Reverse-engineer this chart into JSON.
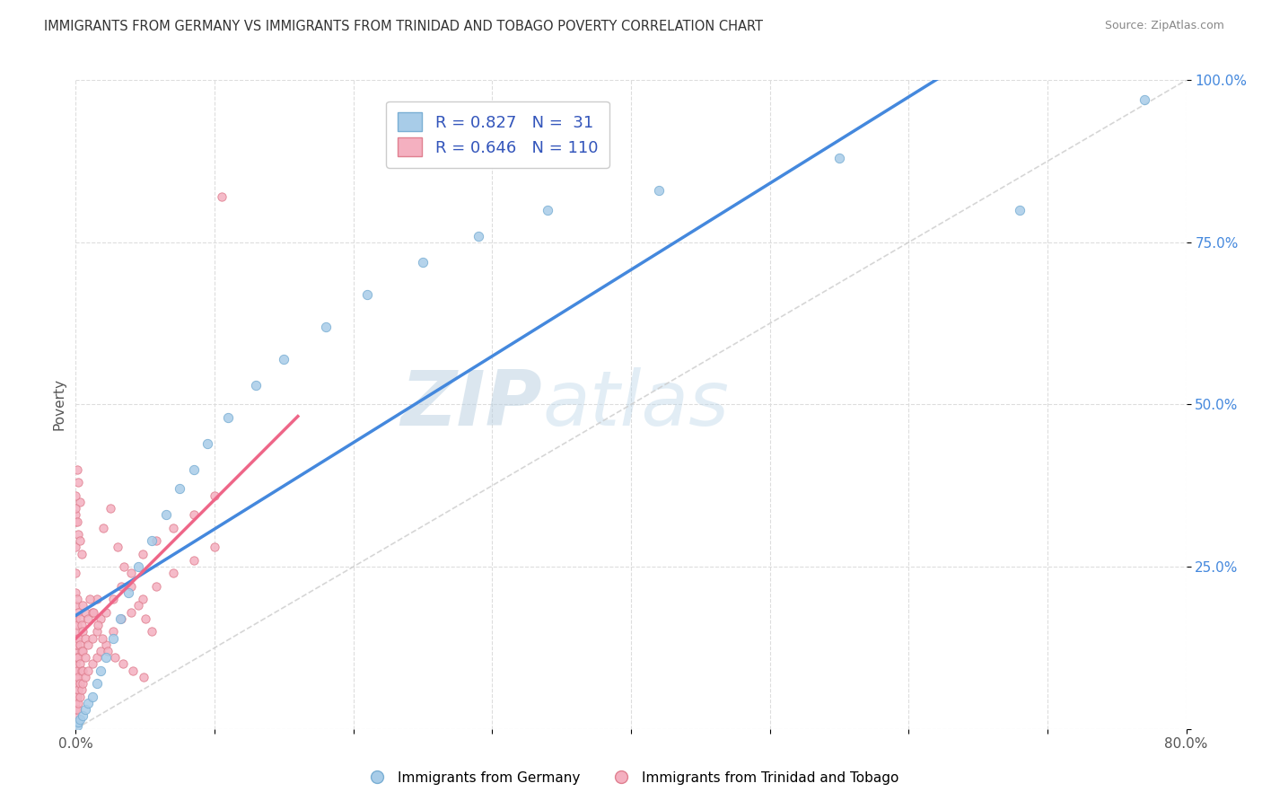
{
  "title": "IMMIGRANTS FROM GERMANY VS IMMIGRANTS FROM TRINIDAD AND TOBAGO POVERTY CORRELATION CHART",
  "source": "Source: ZipAtlas.com",
  "ylabel": "Poverty",
  "watermark_zip": "ZIP",
  "watermark_atlas": "atlas",
  "xlim": [
    0.0,
    0.8
  ],
  "ylim": [
    0.0,
    1.0
  ],
  "germany_color": "#a8cce8",
  "germany_edge": "#7aafd4",
  "tt_color": "#f4b0c0",
  "tt_edge": "#e08090",
  "line_germany_color": "#4488dd",
  "line_tt_color": "#ee6688",
  "ref_line_color": "#cccccc",
  "R_germany": 0.827,
  "N_germany": 31,
  "R_tt": 0.646,
  "N_tt": 110,
  "legend_labels": [
    "Immigrants from Germany",
    "Immigrants from Trinidad and Tobago"
  ],
  "germany_x": [
    0.001,
    0.002,
    0.003,
    0.005,
    0.007,
    0.009,
    0.012,
    0.015,
    0.018,
    0.022,
    0.027,
    0.032,
    0.038,
    0.045,
    0.055,
    0.065,
    0.075,
    0.085,
    0.095,
    0.11,
    0.13,
    0.15,
    0.18,
    0.21,
    0.25,
    0.29,
    0.34,
    0.42,
    0.55,
    0.68,
    0.77
  ],
  "germany_y": [
    0.005,
    0.01,
    0.015,
    0.02,
    0.03,
    0.04,
    0.05,
    0.07,
    0.09,
    0.11,
    0.14,
    0.17,
    0.21,
    0.25,
    0.29,
    0.33,
    0.37,
    0.4,
    0.44,
    0.48,
    0.53,
    0.57,
    0.62,
    0.67,
    0.72,
    0.76,
    0.8,
    0.83,
    0.88,
    0.8,
    0.97
  ],
  "tt_x": [
    0.0,
    0.0,
    0.0,
    0.0,
    0.0,
    0.0,
    0.0,
    0.0,
    0.0,
    0.0,
    0.0,
    0.0,
    0.0,
    0.0,
    0.0,
    0.0,
    0.0,
    0.0,
    0.0,
    0.0,
    0.001,
    0.001,
    0.001,
    0.001,
    0.001,
    0.001,
    0.001,
    0.001,
    0.002,
    0.002,
    0.002,
    0.002,
    0.002,
    0.002,
    0.003,
    0.003,
    0.003,
    0.003,
    0.003,
    0.004,
    0.004,
    0.004,
    0.004,
    0.005,
    0.005,
    0.005,
    0.005,
    0.005,
    0.007,
    0.007,
    0.007,
    0.007,
    0.009,
    0.009,
    0.009,
    0.012,
    0.012,
    0.012,
    0.015,
    0.015,
    0.015,
    0.018,
    0.018,
    0.022,
    0.022,
    0.027,
    0.027,
    0.033,
    0.033,
    0.04,
    0.04,
    0.048,
    0.048,
    0.058,
    0.058,
    0.07,
    0.07,
    0.085,
    0.085,
    0.1,
    0.1,
    0.02,
    0.025,
    0.03,
    0.035,
    0.04,
    0.045,
    0.05,
    0.055,
    0.01,
    0.013,
    0.016,
    0.019,
    0.023,
    0.028,
    0.034,
    0.041,
    0.049,
    0.0,
    0.001,
    0.002,
    0.003,
    0.004,
    0.105,
    0.003,
    0.002,
    0.001,
    0.0,
    0.0
  ],
  "tt_y": [
    0.02,
    0.03,
    0.04,
    0.05,
    0.06,
    0.07,
    0.08,
    0.09,
    0.1,
    0.11,
    0.12,
    0.13,
    0.14,
    0.15,
    0.17,
    0.19,
    0.21,
    0.24,
    0.28,
    0.32,
    0.03,
    0.05,
    0.07,
    0.09,
    0.11,
    0.13,
    0.16,
    0.2,
    0.04,
    0.06,
    0.08,
    0.11,
    0.14,
    0.18,
    0.05,
    0.07,
    0.1,
    0.13,
    0.17,
    0.06,
    0.09,
    0.12,
    0.16,
    0.07,
    0.09,
    0.12,
    0.15,
    0.19,
    0.08,
    0.11,
    0.14,
    0.18,
    0.09,
    0.13,
    0.17,
    0.1,
    0.14,
    0.18,
    0.11,
    0.15,
    0.2,
    0.12,
    0.17,
    0.13,
    0.18,
    0.15,
    0.2,
    0.17,
    0.22,
    0.18,
    0.24,
    0.2,
    0.27,
    0.22,
    0.29,
    0.24,
    0.31,
    0.26,
    0.33,
    0.28,
    0.36,
    0.31,
    0.34,
    0.28,
    0.25,
    0.22,
    0.19,
    0.17,
    0.15,
    0.2,
    0.18,
    0.16,
    0.14,
    0.12,
    0.11,
    0.1,
    0.09,
    0.08,
    0.33,
    0.32,
    0.3,
    0.29,
    0.27,
    0.82,
    0.35,
    0.38,
    0.4,
    0.36,
    0.34
  ]
}
